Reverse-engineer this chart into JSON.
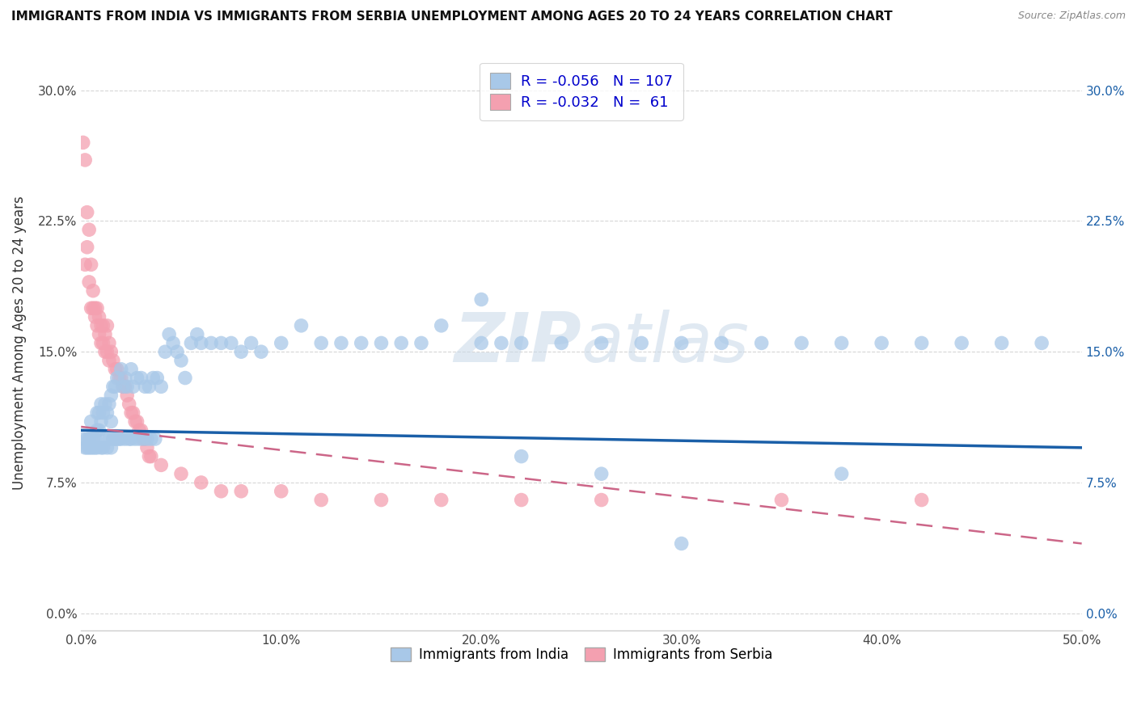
{
  "title": "IMMIGRANTS FROM INDIA VS IMMIGRANTS FROM SERBIA UNEMPLOYMENT AMONG AGES 20 TO 24 YEARS CORRELATION CHART",
  "source": "Source: ZipAtlas.com",
  "ylabel": "Unemployment Among Ages 20 to 24 years",
  "xlim": [
    0.0,
    0.5
  ],
  "ylim": [
    -0.01,
    0.32
  ],
  "xticks": [
    0.0,
    0.1,
    0.2,
    0.3,
    0.4,
    0.5
  ],
  "xticklabels": [
    "0.0%",
    "10.0%",
    "20.0%",
    "30.0%",
    "40.0%",
    "50.0%"
  ],
  "yticks": [
    0.0,
    0.075,
    0.15,
    0.225,
    0.3
  ],
  "yticklabels": [
    "0.0%",
    "7.5%",
    "15.0%",
    "22.5%",
    "30.0%"
  ],
  "india_R": "-0.056",
  "india_N": "107",
  "serbia_R": "-0.032",
  "serbia_N": "61",
  "india_color": "#a8c8e8",
  "serbia_color": "#f4a0b0",
  "india_line_color": "#1a5fa8",
  "serbia_line_color": "#cc6688",
  "watermark_zip": "ZIP",
  "watermark_atlas": "atlas",
  "legend_india_label": "Immigrants from India",
  "legend_serbia_label": "Immigrants from Serbia",
  "india_scatter_x": [
    0.001,
    0.002,
    0.003,
    0.003,
    0.004,
    0.004,
    0.005,
    0.005,
    0.005,
    0.006,
    0.006,
    0.007,
    0.007,
    0.008,
    0.008,
    0.008,
    0.009,
    0.009,
    0.01,
    0.01,
    0.01,
    0.011,
    0.011,
    0.012,
    0.012,
    0.013,
    0.013,
    0.014,
    0.014,
    0.015,
    0.015,
    0.015,
    0.016,
    0.016,
    0.017,
    0.017,
    0.018,
    0.018,
    0.019,
    0.02,
    0.02,
    0.021,
    0.022,
    0.022,
    0.023,
    0.024,
    0.025,
    0.025,
    0.026,
    0.027,
    0.028,
    0.029,
    0.03,
    0.031,
    0.032,
    0.033,
    0.034,
    0.035,
    0.036,
    0.037,
    0.038,
    0.04,
    0.042,
    0.044,
    0.046,
    0.048,
    0.05,
    0.052,
    0.055,
    0.058,
    0.06,
    0.065,
    0.07,
    0.075,
    0.08,
    0.085,
    0.09,
    0.1,
    0.11,
    0.12,
    0.13,
    0.14,
    0.15,
    0.16,
    0.17,
    0.18,
    0.2,
    0.21,
    0.22,
    0.24,
    0.26,
    0.28,
    0.3,
    0.32,
    0.34,
    0.36,
    0.38,
    0.4,
    0.42,
    0.44,
    0.46,
    0.48,
    0.2,
    0.26,
    0.3,
    0.38,
    0.22
  ],
  "india_scatter_y": [
    0.1,
    0.095,
    0.1,
    0.095,
    0.1,
    0.095,
    0.11,
    0.1,
    0.095,
    0.1,
    0.095,
    0.1,
    0.095,
    0.115,
    0.105,
    0.095,
    0.115,
    0.105,
    0.12,
    0.11,
    0.095,
    0.115,
    0.095,
    0.12,
    0.1,
    0.115,
    0.095,
    0.12,
    0.1,
    0.125,
    0.11,
    0.095,
    0.13,
    0.1,
    0.13,
    0.1,
    0.135,
    0.1,
    0.1,
    0.14,
    0.1,
    0.13,
    0.135,
    0.1,
    0.13,
    0.1,
    0.14,
    0.1,
    0.13,
    0.1,
    0.135,
    0.1,
    0.135,
    0.1,
    0.13,
    0.1,
    0.13,
    0.1,
    0.135,
    0.1,
    0.135,
    0.13,
    0.15,
    0.16,
    0.155,
    0.15,
    0.145,
    0.135,
    0.155,
    0.16,
    0.155,
    0.155,
    0.155,
    0.155,
    0.15,
    0.155,
    0.15,
    0.155,
    0.165,
    0.155,
    0.155,
    0.155,
    0.155,
    0.155,
    0.155,
    0.165,
    0.155,
    0.155,
    0.155,
    0.155,
    0.155,
    0.155,
    0.155,
    0.155,
    0.155,
    0.155,
    0.155,
    0.155,
    0.155,
    0.155,
    0.155,
    0.155,
    0.18,
    0.08,
    0.04,
    0.08,
    0.09
  ],
  "serbia_scatter_x": [
    0.001,
    0.002,
    0.002,
    0.003,
    0.003,
    0.004,
    0.004,
    0.005,
    0.005,
    0.006,
    0.006,
    0.007,
    0.007,
    0.008,
    0.008,
    0.009,
    0.009,
    0.01,
    0.01,
    0.011,
    0.011,
    0.012,
    0.012,
    0.013,
    0.013,
    0.014,
    0.014,
    0.015,
    0.016,
    0.017,
    0.018,
    0.019,
    0.02,
    0.021,
    0.022,
    0.023,
    0.024,
    0.025,
    0.026,
    0.027,
    0.028,
    0.029,
    0.03,
    0.031,
    0.032,
    0.033,
    0.034,
    0.035,
    0.04,
    0.05,
    0.06,
    0.07,
    0.08,
    0.1,
    0.12,
    0.15,
    0.18,
    0.22,
    0.26,
    0.35,
    0.42
  ],
  "serbia_scatter_y": [
    0.27,
    0.26,
    0.2,
    0.23,
    0.21,
    0.22,
    0.19,
    0.2,
    0.175,
    0.185,
    0.175,
    0.175,
    0.17,
    0.175,
    0.165,
    0.17,
    0.16,
    0.165,
    0.155,
    0.165,
    0.155,
    0.16,
    0.15,
    0.165,
    0.15,
    0.155,
    0.145,
    0.15,
    0.145,
    0.14,
    0.14,
    0.135,
    0.135,
    0.13,
    0.13,
    0.125,
    0.12,
    0.115,
    0.115,
    0.11,
    0.11,
    0.105,
    0.105,
    0.1,
    0.1,
    0.095,
    0.09,
    0.09,
    0.085,
    0.08,
    0.075,
    0.07,
    0.07,
    0.07,
    0.065,
    0.065,
    0.065,
    0.065,
    0.065,
    0.065,
    0.065
  ]
}
